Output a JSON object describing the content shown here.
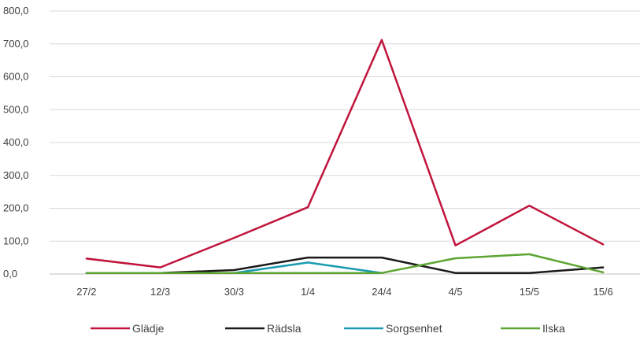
{
  "chart_data": {
    "type": "line",
    "title": "",
    "xlabel": "",
    "ylabel": "",
    "categories": [
      "27/2",
      "12/3",
      "30/3",
      "1/4",
      "24/4",
      "4/5",
      "15/5",
      "15/6"
    ],
    "ylim": [
      0,
      800
    ],
    "yticks": [
      "0,0",
      "100,0",
      "200,0",
      "300,0",
      "400,0",
      "500,0",
      "600,0",
      "700,0",
      "800,0"
    ],
    "grid": "horizontal",
    "legend_position": "bottom",
    "series": [
      {
        "name": "Glädje",
        "color": "#C0143C",
        "values": [
          47,
          20,
          110,
          203,
          712,
          87,
          208,
          90
        ]
      },
      {
        "name": "Rädsla",
        "color": "#1A1A1A",
        "values": [
          3,
          3,
          12,
          50,
          50,
          3,
          3,
          20
        ]
      },
      {
        "name": "Sorgsenhet",
        "color": "#1A9BB0",
        "values": [
          3,
          3,
          3,
          35,
          3,
          null,
          null,
          null
        ]
      },
      {
        "name": "Ilska",
        "color": "#5DA532",
        "values": [
          3,
          3,
          3,
          3,
          3,
          48,
          60,
          5
        ]
      }
    ]
  }
}
